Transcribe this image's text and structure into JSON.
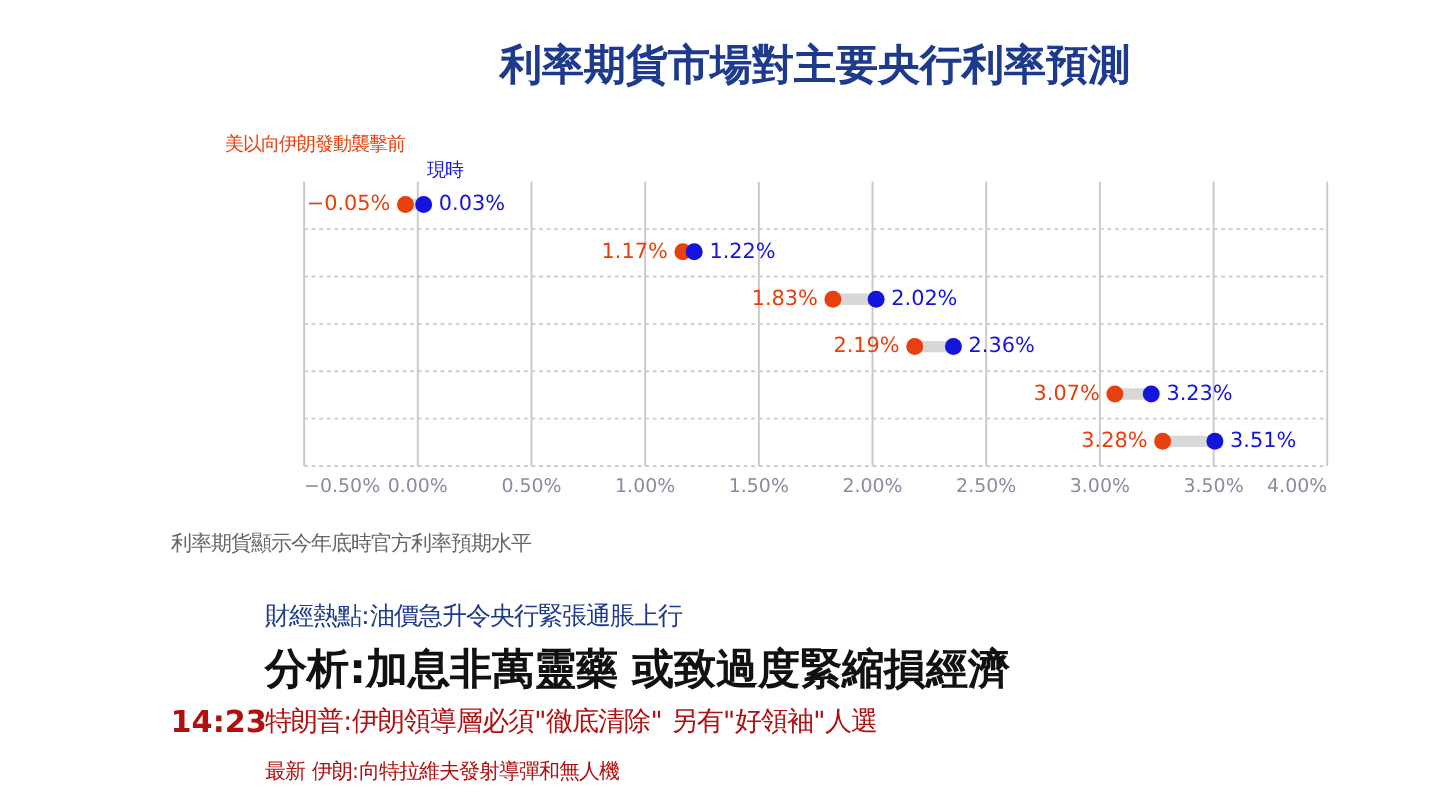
{
  "chart_data": {
    "type": "scatter",
    "orientation": "horizontal",
    "title": "利率期貨市場對主要央行利率預測",
    "categories": [
      null,
      null,
      null,
      null,
      null,
      null
    ],
    "series": [
      {
        "name": "美以向伊朗發動襲擊前",
        "color": "#e8400c",
        "values": [
          -0.05,
          1.17,
          1.83,
          2.19,
          3.07,
          3.28
        ],
        "value_labels": [
          "−0.05%",
          "1.17%",
          "1.83%",
          "2.19%",
          "3.07%",
          "3.28%"
        ]
      },
      {
        "name": "現時",
        "color": "#1414dc",
        "values": [
          0.03,
          1.22,
          2.02,
          2.36,
          3.23,
          3.51
        ],
        "value_labels": [
          "0.03%",
          "1.22%",
          "2.02%",
          "2.36%",
          "3.23%",
          "3.51%"
        ]
      }
    ],
    "xlim": [
      -0.5,
      4.0
    ],
    "xticks": [
      {
        "value": -0.5,
        "label": "−0.50%"
      },
      {
        "value": 0,
        "label": "0.00%"
      },
      {
        "value": 0.5,
        "label": "0.50%"
      },
      {
        "value": 1.0,
        "label": "1.00%"
      },
      {
        "value": 1.5,
        "label": "1.50%"
      },
      {
        "value": 2.0,
        "label": "2.00%"
      },
      {
        "value": 2.5,
        "label": "2.50%"
      },
      {
        "value": 3.0,
        "label": "3.00%"
      },
      {
        "value": 3.5,
        "label": "3.50%"
      },
      {
        "value": 4.0,
        "label": "4.00%"
      }
    ],
    "grid": true,
    "marker": "circle",
    "tick_labels": "x",
    "annotations": [
      "利率期貨顯示今年底時官方利率預期水平",
      "財經熱點:油價急升令央行緊張通脹上行",
      "分析:加息非萬靈藥 或致過度緊縮損經濟",
      "特朗普:伊朗領導層必須\"徹底清除\" 另有\"好領袖\"人選",
      "14:23",
      "最新 伊朗:向特拉維夫發射導彈和無人機"
    ]
  }
}
